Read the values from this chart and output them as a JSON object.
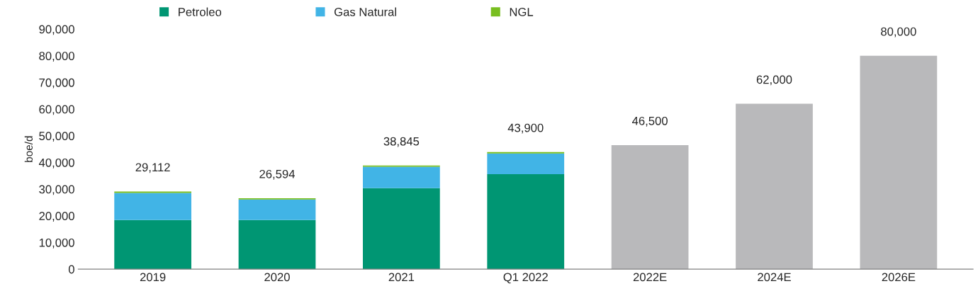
{
  "chart_data": {
    "type": "bar",
    "stacked": true,
    "ylabel": "boe/d",
    "categories": [
      "2019",
      "2020",
      "2021",
      "Q1 2022",
      "2022E",
      "2024E",
      "2026E"
    ],
    "series": [
      {
        "name": "Petroleo",
        "color": "#009673",
        "values": [
          18400,
          18400,
          30400,
          35600,
          null,
          null,
          null
        ]
      },
      {
        "name": "Gas Natural",
        "color": "#41b4e6",
        "values": [
          10200,
          7700,
          8000,
          7800,
          null,
          null,
          null
        ]
      },
      {
        "name": "NGL",
        "color": "#78be20",
        "values": [
          512,
          494,
          445,
          500,
          null,
          null,
          null
        ]
      },
      {
        "color": "#b9b9bb",
        "values": [
          null,
          null,
          null,
          null,
          46500,
          62000,
          80000
        ]
      }
    ],
    "totals": [
      "29,112",
      "26,594",
      "38,845",
      "43,900",
      "46,500",
      "62,000",
      "80,000"
    ],
    "ylim": [
      0,
      90000
    ],
    "yticks": [
      {
        "value": 0,
        "label": "0"
      },
      {
        "value": 10000,
        "label": "10,000"
      },
      {
        "value": 20000,
        "label": "20,000"
      },
      {
        "value": 30000,
        "label": "30,000"
      },
      {
        "value": 40000,
        "label": "40,000"
      },
      {
        "value": 50000,
        "label": "50,000"
      },
      {
        "value": 60000,
        "label": "60,000"
      },
      {
        "value": 70000,
        "label": "70,000"
      },
      {
        "value": 80000,
        "label": "80,000"
      },
      {
        "value": 90000,
        "label": "90,000"
      }
    ],
    "grid": false,
    "legend": "top"
  }
}
